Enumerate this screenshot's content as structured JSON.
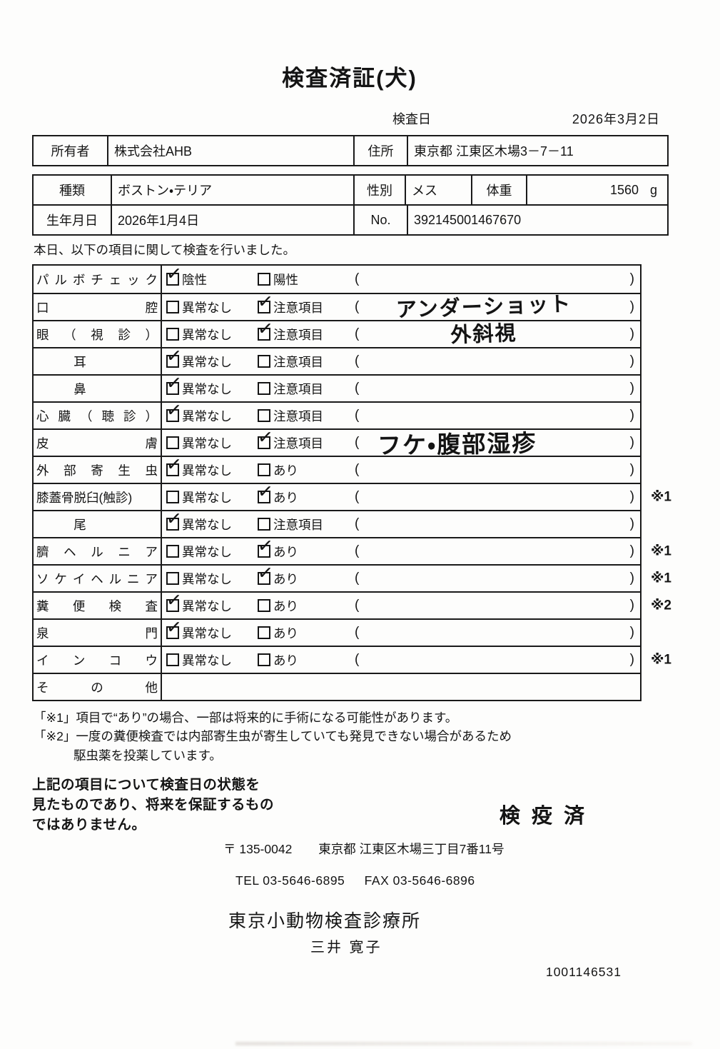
{
  "title": "検査済証(犬)",
  "inspection_date": {
    "label": "検査日",
    "value": "2026年3月2日"
  },
  "owner_table": {
    "owner_label": "所有者",
    "owner_value": "株式会社AHB",
    "address_label": "住所",
    "address_value": "東京都 江東区木場3－7－11"
  },
  "info_table": {
    "breed_label": "種類",
    "breed_value": "ボストン・テリア",
    "sex_label": "性別",
    "sex_value": "メス",
    "weight_label": "体重",
    "weight_value": "1560",
    "weight_unit": "g",
    "birth_label": "生年月日",
    "birth_value": "2026年1月4日",
    "no_label": "No.",
    "no_value": "392145001467670"
  },
  "intro": "本日、以下の項目に関して検査を行いました。",
  "checklist": {
    "check_glyph": "✓",
    "paren_open": "(",
    "paren_close": ")",
    "rows": [
      {
        "label": "パルボチェック",
        "justify": true,
        "options": [
          {
            "text": "陰性",
            "checked": true
          },
          {
            "text": "陽性",
            "checked": false
          }
        ],
        "hand": "",
        "mark": ""
      },
      {
        "label": "口腔",
        "justify": true,
        "options": [
          {
            "text": "異常なし",
            "checked": false
          },
          {
            "text": "注意項目",
            "checked": true
          }
        ],
        "hand": "アンダーショット",
        "mark": ""
      },
      {
        "label": "眼（視診）",
        "justify": true,
        "options": [
          {
            "text": "異常なし",
            "checked": false
          },
          {
            "text": "注意項目",
            "checked": true
          }
        ],
        "hand": "外斜視",
        "mark": ""
      },
      {
        "label": "耳",
        "center": true,
        "options": [
          {
            "text": "異常なし",
            "checked": true
          },
          {
            "text": "注意項目",
            "checked": false
          }
        ],
        "hand": "",
        "mark": ""
      },
      {
        "label": "鼻",
        "center": true,
        "options": [
          {
            "text": "異常なし",
            "checked": true
          },
          {
            "text": "注意項目",
            "checked": false
          }
        ],
        "hand": "",
        "mark": ""
      },
      {
        "label": "心臓（聴診）",
        "justify": true,
        "options": [
          {
            "text": "異常なし",
            "checked": true
          },
          {
            "text": "注意項目",
            "checked": false
          }
        ],
        "hand": "",
        "mark": ""
      },
      {
        "label": "皮膚",
        "justify": true,
        "options": [
          {
            "text": "異常なし",
            "checked": false
          },
          {
            "text": "注意項目",
            "checked": true
          }
        ],
        "hand": "フケ・腹部湿疹",
        "hand_large": true,
        "mark": ""
      },
      {
        "label": "外部寄生虫",
        "justify": true,
        "options": [
          {
            "text": "異常なし",
            "checked": true
          },
          {
            "text": "あり",
            "checked": false
          }
        ],
        "hand": "",
        "mark": ""
      },
      {
        "label": "膝蓋骨脱臼(触診)",
        "justify": false,
        "options": [
          {
            "text": "異常なし",
            "checked": false
          },
          {
            "text": "あり",
            "checked": true
          }
        ],
        "hand": "",
        "mark": "※1"
      },
      {
        "label": "尾",
        "center": true,
        "options": [
          {
            "text": "異常なし",
            "checked": true
          },
          {
            "text": "注意項目",
            "checked": false
          }
        ],
        "hand": "",
        "mark": ""
      },
      {
        "label": "臍ヘルニア",
        "justify": true,
        "options": [
          {
            "text": "異常なし",
            "checked": false
          },
          {
            "text": "あり",
            "checked": true
          }
        ],
        "hand": "",
        "mark": "※1"
      },
      {
        "label": "ソケイヘルニア",
        "justify": true,
        "options": [
          {
            "text": "異常なし",
            "checked": false
          },
          {
            "text": "あり",
            "checked": true
          }
        ],
        "hand": "",
        "mark": "※1"
      },
      {
        "label": "糞便検査",
        "justify": true,
        "options": [
          {
            "text": "異常なし",
            "checked": true
          },
          {
            "text": "あり",
            "checked": false
          }
        ],
        "hand": "",
        "mark": "※2"
      },
      {
        "label": "泉門",
        "justify": true,
        "options": [
          {
            "text": "異常なし",
            "checked": true
          },
          {
            "text": "あり",
            "checked": false
          }
        ],
        "hand": "",
        "mark": ""
      },
      {
        "label": "インコウ",
        "justify": true,
        "options": [
          {
            "text": "異常なし",
            "checked": false
          },
          {
            "text": "あり",
            "checked": false
          }
        ],
        "hand": "",
        "mark": "※1"
      },
      {
        "label": "その他",
        "justify": true,
        "options": null,
        "hand": "",
        "mark": ""
      }
    ]
  },
  "notes": [
    "「※1」項目で“あり”の場合、一部は将来的に手術になる可能性があります。",
    "「※2」一度の糞便検査では内部寄生虫が寄生していても発見できない場合があるため",
    "駆虫薬を投薬しています。"
  ],
  "disclaimer": [
    "上記の項目について検査日の状態を",
    "見たものであり、将来を保証するもの",
    "ではありません。"
  ],
  "quarantine_stamp": "検 疫 済",
  "clinic": {
    "postal": "〒 135-0042",
    "address": "東京都 江東区木場三丁目7番11号",
    "tel": "TEL 03-5646-6895",
    "fax": "FAX 03-5646-6896",
    "name": "東京小動物検査診療所",
    "person": "三井 寛子",
    "serial": "1001146531"
  }
}
